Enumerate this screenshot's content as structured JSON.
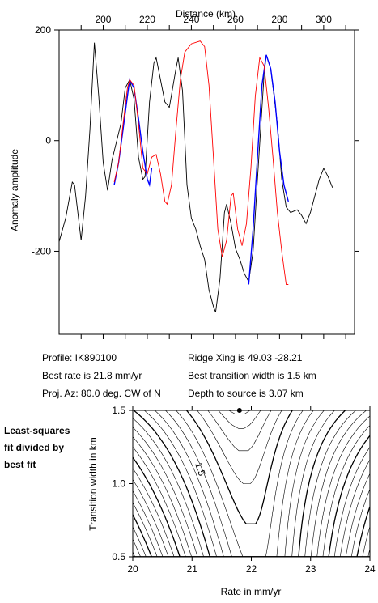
{
  "chart_data": [
    {
      "type": "line",
      "xlabel": "Distance (km)",
      "ylabel": "Anomaly amplitude",
      "xlim": [
        180,
        314
      ],
      "ylim": [
        -350,
        200
      ],
      "x_ticks_labeled": [
        200,
        220,
        240,
        260,
        280,
        300
      ],
      "x_ticks": [
        190,
        200,
        210,
        220,
        230,
        240,
        250,
        260,
        270,
        280,
        290,
        300,
        310
      ],
      "y_ticks": [
        -200,
        0,
        200
      ],
      "y_tick_labels": [
        "-200",
        "0",
        "200"
      ],
      "grid": false,
      "series": [
        {
          "color": "#000000",
          "points": [
            [
              180,
              -183
            ],
            [
              183,
              -140
            ],
            [
              186,
              -75
            ],
            [
              187,
              -80
            ],
            [
              190,
              -180
            ],
            [
              192,
              -100
            ],
            [
              194,
              20
            ],
            [
              196,
              177
            ],
            [
              198,
              80
            ],
            [
              200,
              -40
            ],
            [
              202,
              -90
            ],
            [
              204,
              -35
            ],
            [
              208,
              30
            ],
            [
              210,
              95
            ],
            [
              212,
              110
            ],
            [
              214,
              75
            ],
            [
              216,
              -30
            ],
            [
              218,
              -70
            ],
            [
              219,
              -65
            ],
            [
              221,
              70
            ],
            [
              223,
              140
            ],
            [
              224,
              150
            ],
            [
              226,
              110
            ],
            [
              228,
              70
            ],
            [
              230,
              60
            ],
            [
              233,
              130
            ],
            [
              234,
              150
            ],
            [
              236,
              90
            ],
            [
              238,
              -80
            ],
            [
              240,
              -140
            ],
            [
              242,
              -160
            ],
            [
              244,
              -190
            ],
            [
              246,
              -215
            ],
            [
              248,
              -270
            ],
            [
              250,
              -300
            ],
            [
              251,
              -310
            ],
            [
              253,
              -250
            ],
            [
              255,
              -130
            ],
            [
              256,
              -115
            ],
            [
              258,
              -150
            ],
            [
              260,
              -195
            ],
            [
              262,
              -215
            ],
            [
              264,
              -240
            ],
            [
              266,
              -255
            ],
            [
              268,
              -200
            ],
            [
              270,
              -70
            ],
            [
              273,
              120
            ],
            [
              274,
              155
            ],
            [
              276,
              130
            ],
            [
              279,
              30
            ],
            [
              281,
              -70
            ],
            [
              283,
              -120
            ],
            [
              285,
              -130
            ],
            [
              288,
              -125
            ],
            [
              290,
              -135
            ],
            [
              292,
              -150
            ],
            [
              294,
              -130
            ],
            [
              298,
              -70
            ],
            [
              300,
              -50
            ],
            [
              302,
              -65
            ],
            [
              304,
              -85
            ]
          ]
        },
        {
          "color": "#0000ff",
          "points": [
            [
              205,
              -80
            ],
            [
              207,
              -40
            ],
            [
              209,
              20
            ],
            [
              211,
              80
            ],
            [
              212,
              110
            ],
            [
              214,
              95
            ],
            [
              216,
              40
            ],
            [
              218,
              -20
            ],
            [
              220,
              -70
            ],
            [
              221,
              -80
            ],
            [
              222,
              -50
            ]
          ]
        },
        {
          "color": "#0000ff",
          "points": [
            [
              266,
              -260
            ],
            [
              268,
              -160
            ],
            [
              270,
              -30
            ],
            [
              272,
              100
            ],
            [
              274,
              155
            ],
            [
              276,
              130
            ],
            [
              278,
              70
            ],
            [
              280,
              -20
            ],
            [
              282,
              -80
            ],
            [
              284,
              -110
            ]
          ]
        },
        {
          "color": "#ff0000",
          "points": [
            [
              205,
              -75
            ],
            [
              207,
              -40
            ],
            [
              209,
              30
            ],
            [
              211,
              95
            ],
            [
              212,
              110
            ],
            [
              214,
              100
            ],
            [
              216,
              30
            ],
            [
              218,
              -50
            ],
            [
              220,
              -60
            ],
            [
              222,
              -30
            ],
            [
              224,
              -25
            ],
            [
              226,
              -60
            ],
            [
              228,
              -110
            ],
            [
              229,
              -115
            ],
            [
              231,
              -80
            ],
            [
              233,
              20
            ],
            [
              235,
              110
            ],
            [
              237,
              160
            ],
            [
              240,
              175
            ],
            [
              244,
              180
            ],
            [
              246,
              170
            ],
            [
              248,
              100
            ],
            [
              250,
              -30
            ],
            [
              252,
              -160
            ],
            [
              254,
              -210
            ],
            [
              256,
              -180
            ],
            [
              258,
              -100
            ],
            [
              259,
              -95
            ],
            [
              261,
              -160
            ],
            [
              263,
              -190
            ],
            [
              265,
              -150
            ],
            [
              267,
              -50
            ],
            [
              269,
              80
            ],
            [
              271,
              150
            ],
            [
              273,
              135
            ],
            [
              275,
              60
            ],
            [
              277,
              -30
            ],
            [
              279,
              -130
            ],
            [
              281,
              -200
            ],
            [
              283,
              -260
            ],
            [
              284,
              -260
            ]
          ]
        }
      ]
    },
    {
      "type": "contour",
      "xlabel": "Rate in mm/yr",
      "ylabel": "Transition width in km",
      "xlim": [
        20,
        24
      ],
      "ylim": [
        0.5,
        1.5
      ],
      "x_ticks": [
        20,
        21,
        22,
        23,
        24
      ],
      "y_ticks": [
        0.5,
        1.0,
        1.5
      ],
      "y_tick_labels": [
        "0.5",
        "1.0",
        "1.5"
      ],
      "contour_label": "1.5",
      "best_fit_point": [
        21.8,
        1.5
      ]
    }
  ],
  "info": {
    "profile": "Profile: IK890100",
    "best_rate": "Best rate is 21.8 mm/yr",
    "proj_az": "Proj. Az: 80.0 deg. CW of N",
    "ridge_xing": "Ridge Xing is 49.03 -28.21",
    "best_width": "Best transition width is 1.5 km",
    "depth": "Depth to source is   3.07 km"
  },
  "side_note": [
    "Least-squares",
    "fit divided by",
    "best fit"
  ]
}
